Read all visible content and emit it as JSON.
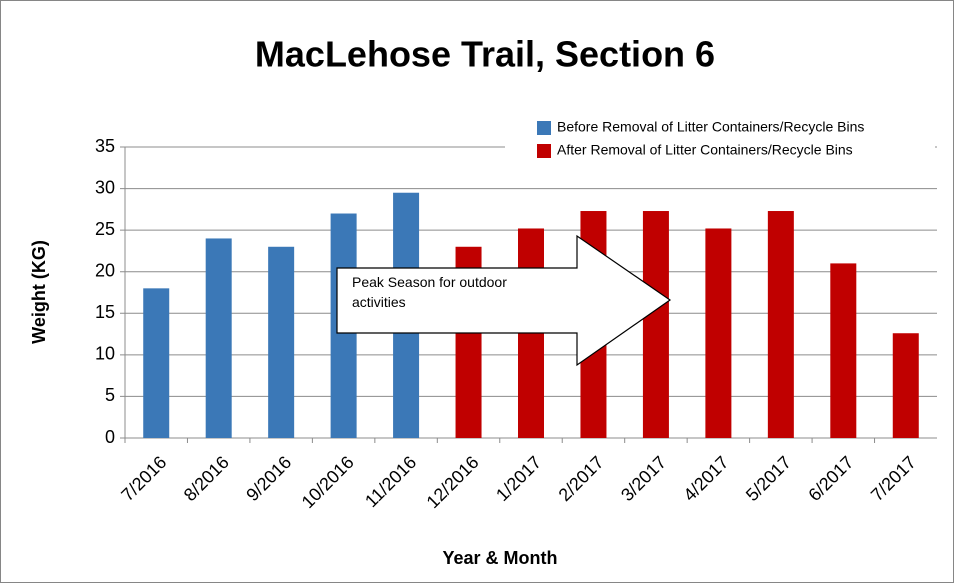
{
  "chart_data": {
    "type": "bar",
    "title": "MacLehose Trail, Section 6",
    "xlabel": "Year & Month",
    "ylabel": "Weight (KG)",
    "annotation": "Peak Season for outdoor activities",
    "categories": [
      "7/2016",
      "8/2016",
      "9/2016",
      "10/2016",
      "11/2016",
      "12/2016",
      "1/2017",
      "2/2017",
      "3/2017",
      "4/2017",
      "5/2017",
      "6/2017",
      "7/2017"
    ],
    "series": [
      {
        "name": "Before Removal of Litter Containers/Recycle Bins",
        "color": "#3b78b7",
        "values": [
          18,
          24,
          23,
          27,
          29.5,
          null,
          null,
          null,
          null,
          null,
          null,
          null,
          null
        ]
      },
      {
        "name": "After Removal of Litter Containers/Recycle Bins",
        "color": "#c00000",
        "values": [
          null,
          null,
          null,
          null,
          null,
          23,
          25.2,
          27.3,
          27.3,
          25.2,
          27.3,
          21,
          12.6
        ]
      }
    ],
    "ylim": [
      0,
      35
    ],
    "yticks": [
      0,
      5,
      10,
      15,
      20,
      25,
      30,
      35
    ],
    "grid": true,
    "legend": "upper right"
  }
}
